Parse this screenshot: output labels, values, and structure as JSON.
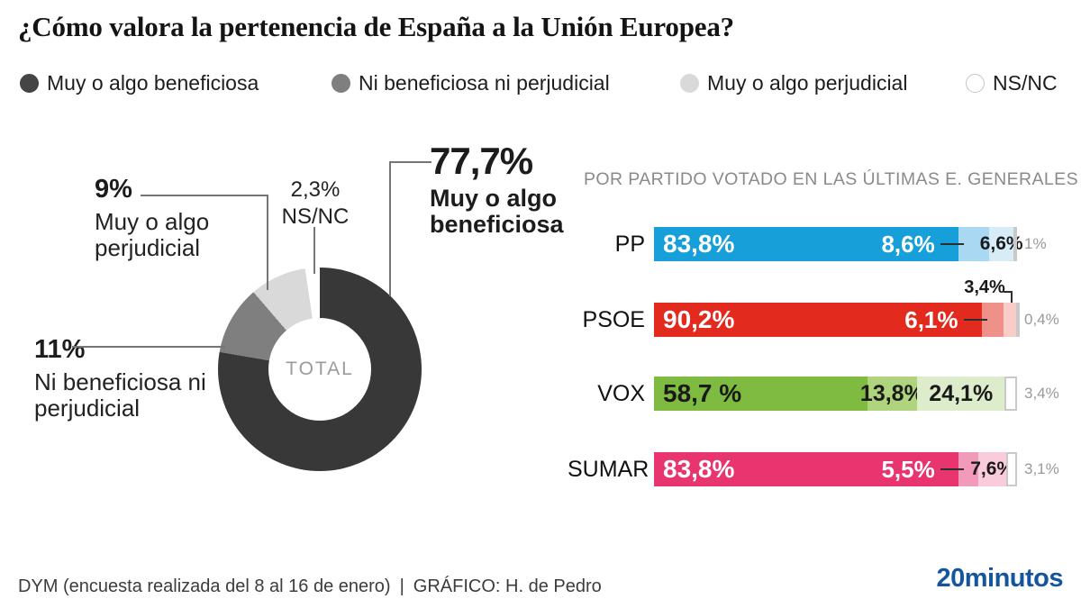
{
  "title": "¿Cómo valora la pertenencia de España a la Unión Europea?",
  "legend": {
    "items": [
      {
        "label": "Muy o algo beneficiosa",
        "color": "#454545"
      },
      {
        "label": "Ni beneficiosa ni perjudicial",
        "color": "#7f7f7f"
      },
      {
        "label": "Muy o algo perjudicial",
        "color": "#d9d9d9"
      },
      {
        "label": "NS/NC",
        "color": "#ffffff",
        "border": "#c4c4c4"
      }
    ]
  },
  "chart_data": [
    {
      "type": "pie",
      "subtype": "donut",
      "title": "TOTAL",
      "unit": "%",
      "slices": [
        {
          "label": "Muy o algo beneficiosa",
          "value": 77.7,
          "display": "77,7%",
          "color": "#383838"
        },
        {
          "label": "Ni beneficiosa ni perjudicial",
          "value": 11,
          "display": "11%",
          "color": "#7f7f7f"
        },
        {
          "label": "Muy o algo perjudicial",
          "value": 9,
          "display": "9%",
          "color": "#d9d9d9"
        },
        {
          "label": "NS/NC",
          "value": 2.3,
          "display": "2,3%",
          "color": "#ffffff"
        }
      ]
    },
    {
      "type": "bar",
      "stacked": true,
      "orientation": "horizontal",
      "title": "POR PARTIDO VOTADO EN LAS ÚLTIMAS E. GENERALES",
      "x_max": 100,
      "unit": "%",
      "segment_names": [
        "Muy o algo beneficiosa",
        "Ni beneficiosa ni perjudicial",
        "Muy o algo perjudicial",
        "NS/NC"
      ],
      "rows": [
        {
          "party": "PP",
          "values": [
            83.8,
            8.6,
            6.6,
            1.0
          ],
          "displays": [
            "83,8%",
            "8,6%",
            "6,6%",
            "1%"
          ],
          "colors": [
            "#169fd9",
            "#a9d9f2",
            "#d8ecf8",
            "#ffffff"
          ],
          "label_modes": [
            "in",
            "dash",
            "seg",
            "out"
          ]
        },
        {
          "party": "PSOE",
          "values": [
            90.2,
            6.1,
            3.4,
            0.4
          ],
          "displays": [
            "90,2%",
            "6,1%",
            "3,4%",
            "0,4%"
          ],
          "colors": [
            "#e32a1e",
            "#ef9089",
            "#f9ccc7",
            "#ffffff"
          ],
          "label_modes": [
            "in",
            "dash",
            "above",
            "out"
          ]
        },
        {
          "party": "VOX",
          "values": [
            58.7,
            13.8,
            24.1,
            3.4
          ],
          "displays": [
            "58,7 %",
            "13,8%",
            "24,1%",
            "3,4%"
          ],
          "colors": [
            "#7ebb40",
            "#afd47d",
            "#ddeccb",
            "#ffffff"
          ],
          "label_modes": [
            "in-dark",
            "seg",
            "seg",
            "out"
          ]
        },
        {
          "party": "SUMAR",
          "values": [
            83.8,
            5.5,
            7.6,
            3.1
          ],
          "displays": [
            "83,8%",
            "5,5%",
            "7,6%",
            "3,1%"
          ],
          "colors": [
            "#e8356f",
            "#f29ab9",
            "#f9cbdb",
            "#ffffff"
          ],
          "label_modes": [
            "in",
            "dash",
            "seg",
            "out"
          ]
        }
      ]
    }
  ],
  "footer": {
    "source": "DYM (encuesta realizada del 8 al 16 de enero)",
    "separator": "|",
    "credit": "GRÁFICO: H. de Pedro",
    "logo": "20minutos"
  }
}
